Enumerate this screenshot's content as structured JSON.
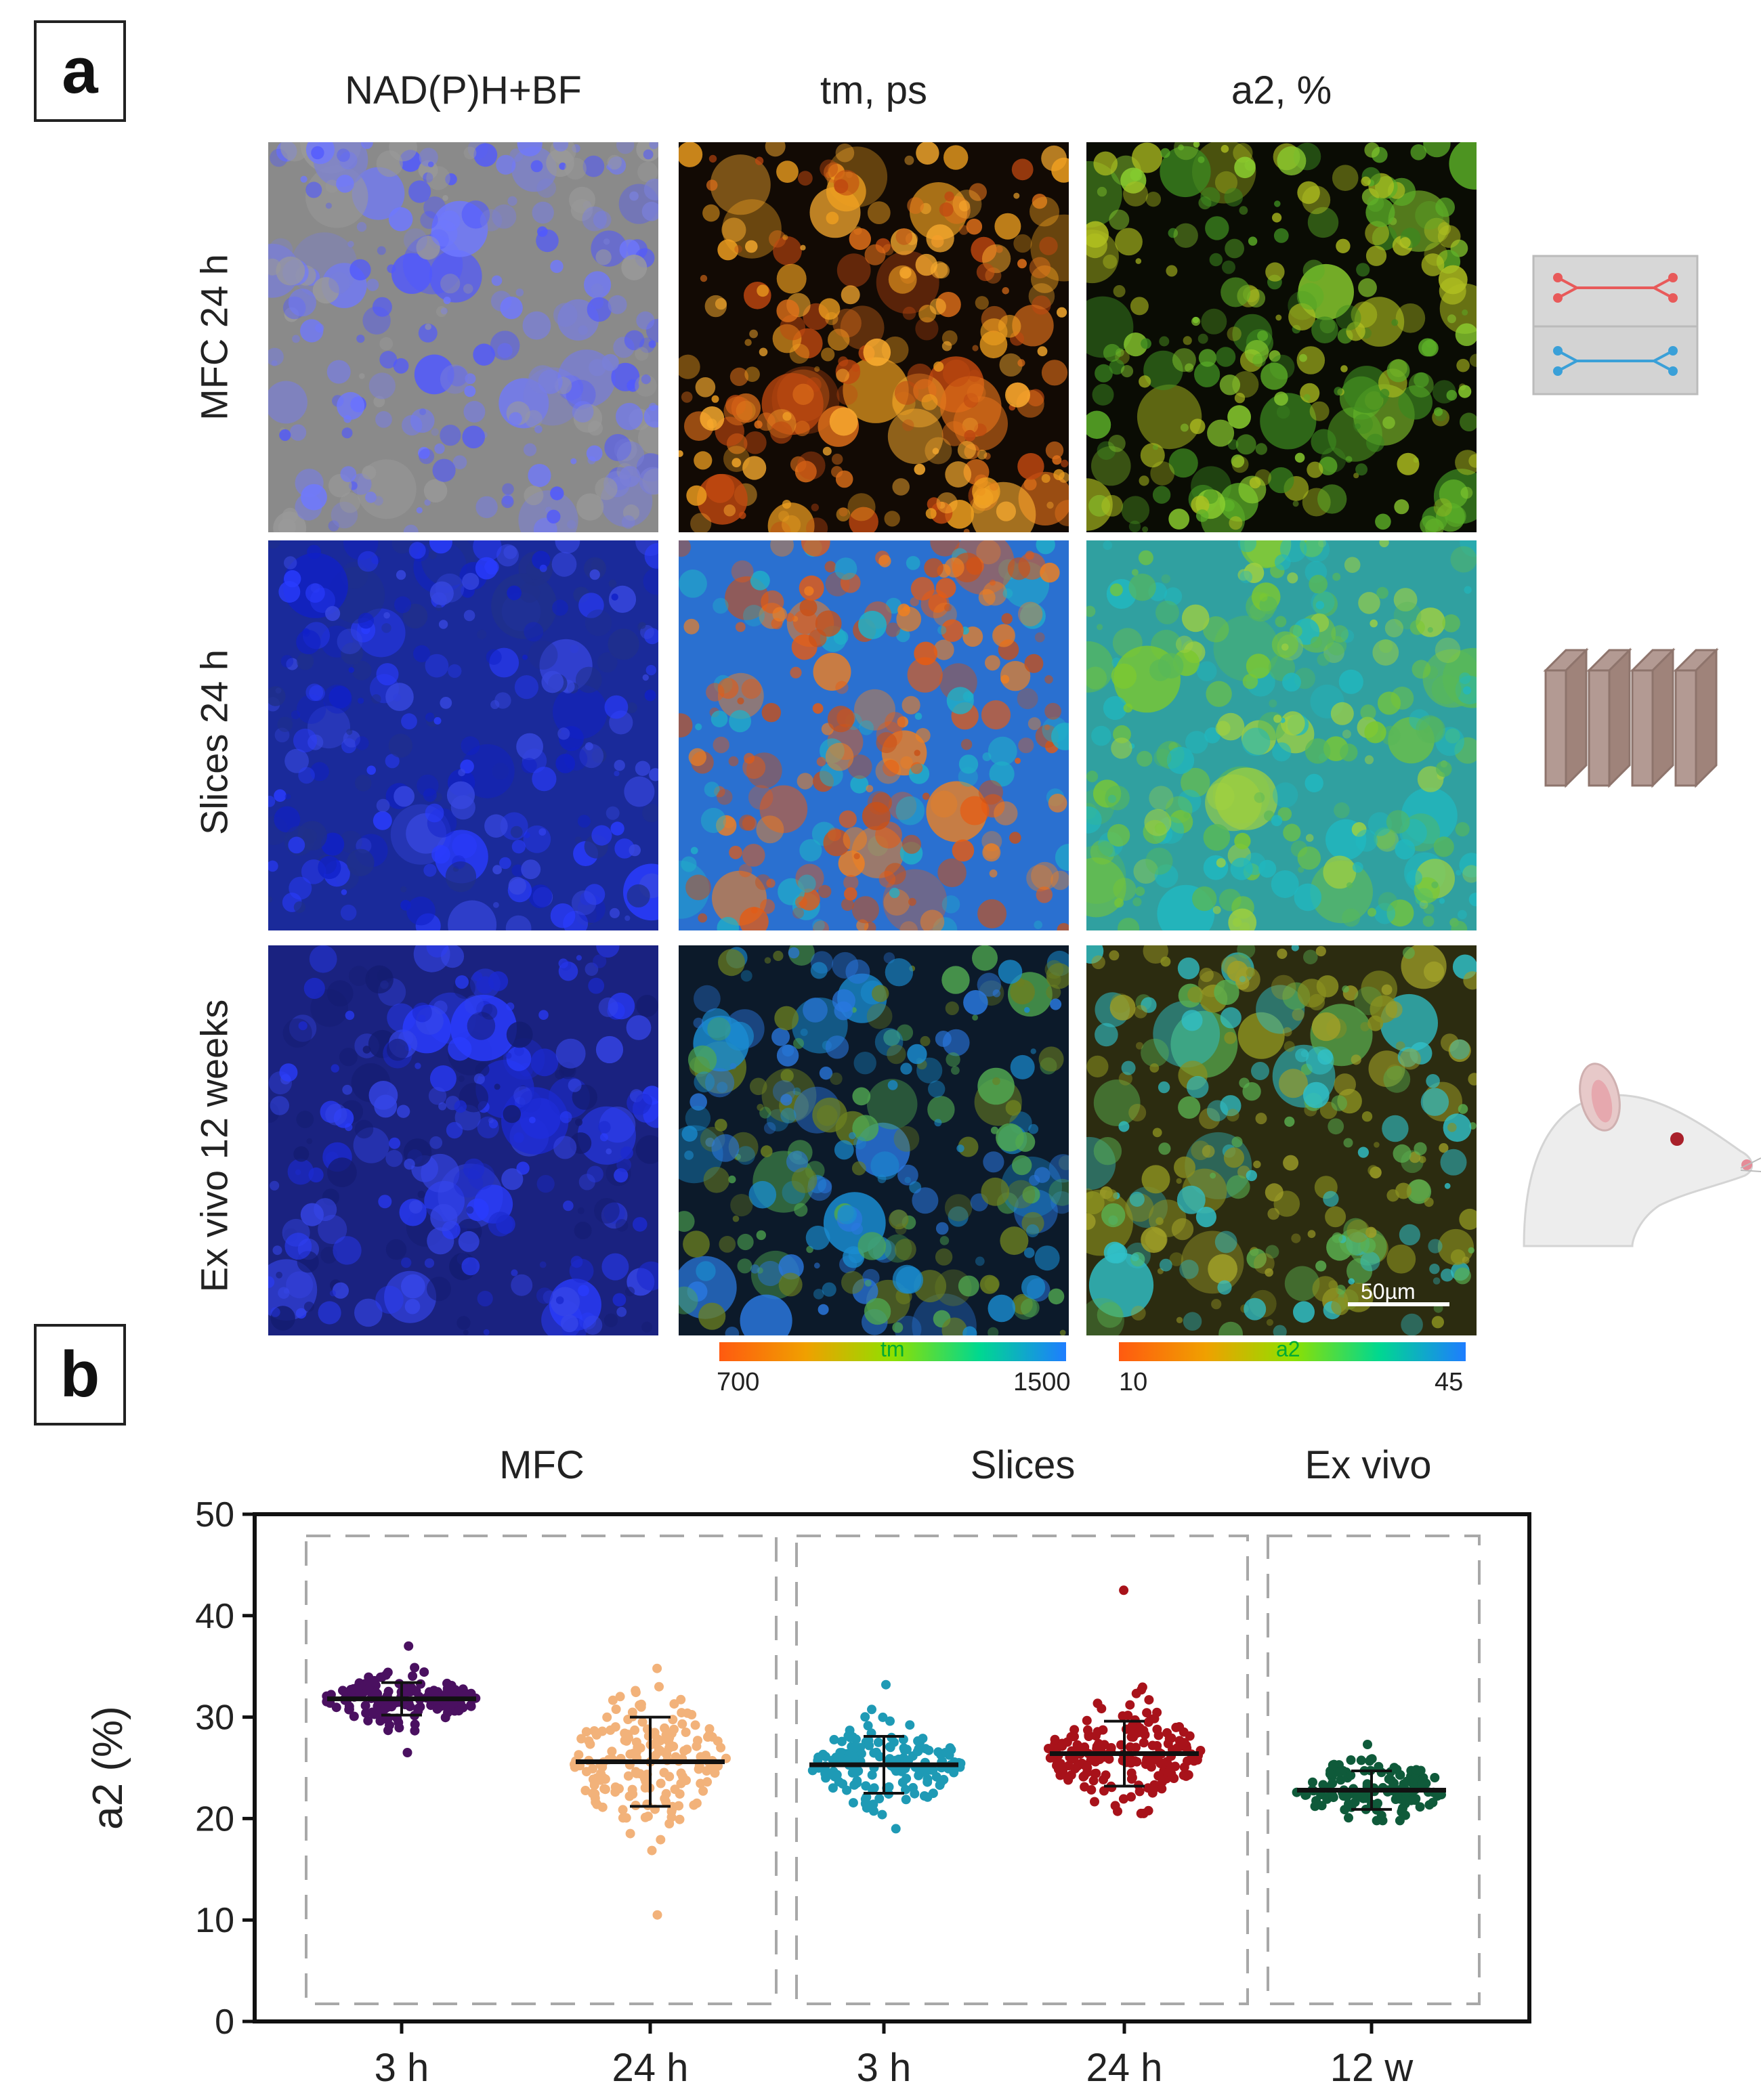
{
  "panel_a": {
    "letter": "a",
    "columns": [
      "NAD(P)H+BF",
      "tm, ps",
      "a2, %"
    ],
    "rows": [
      "MFC 24 h",
      "Slices 24 h",
      "Ex vivo 12 weeks"
    ],
    "scale_bar": "50µm",
    "colorbars": [
      {
        "name": "tm",
        "min": "700",
        "max": "1500"
      },
      {
        "name": "a2",
        "min": "10",
        "max": "45"
      }
    ],
    "icons": [
      "microfluidic-chip-icon",
      "tissue-slices-icon",
      "rat-head-icon"
    ]
  },
  "panel_b": {
    "letter": "b",
    "groups": [
      "MFC",
      "Slices",
      "Ex vivo"
    ]
  },
  "chart_data": {
    "type": "scatter",
    "ylabel": "a2 (%)",
    "ylim": [
      0,
      50
    ],
    "yticks": [
      0,
      10,
      20,
      30,
      40,
      50
    ],
    "categories": [
      "3 h",
      "24 h",
      "3 h",
      "24 h",
      "12 w"
    ],
    "series": [
      {
        "mean": 31.8,
        "sd": 1.6,
        "min": 26.5,
        "max": 37.0,
        "n": 160,
        "color": "#4a1060"
      },
      {
        "mean": 25.6,
        "sd": 4.4,
        "min": 10.5,
        "max": 34.8,
        "n": 180,
        "color": "#f2b27a"
      },
      {
        "mean": 25.3,
        "sd": 2.8,
        "min": 19.0,
        "max": 33.2,
        "n": 170,
        "color": "#1e9ab5"
      },
      {
        "mean": 26.4,
        "sd": 3.2,
        "min": 20.5,
        "max": 42.5,
        "n": 190,
        "color": "#a8121a"
      },
      {
        "mean": 22.8,
        "sd": 1.9,
        "min": 19.8,
        "max": 27.3,
        "n": 130,
        "color": "#0f5a3a"
      }
    ]
  }
}
